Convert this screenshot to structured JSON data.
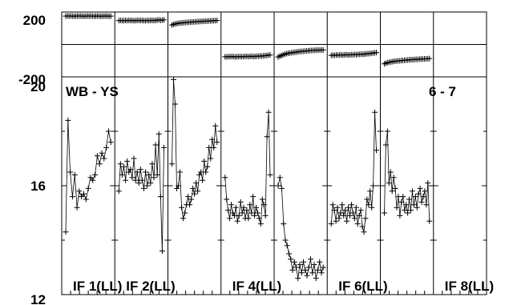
{
  "chart_data": {
    "type": "line",
    "layout": "vertically stacked panels, 8 sub-columns sharing the x axis",
    "grid": true,
    "color": "#000000",
    "marker": "plus",
    "panels": [
      {
        "id": "phase",
        "y_ticks": [
          "200",
          "-200"
        ],
        "ylim": [
          -200,
          200
        ],
        "reference_line": 0
      },
      {
        "id": "amplitude",
        "y_ticks": [
          "20",
          "16",
          "12"
        ],
        "ylim": [
          12,
          20
        ],
        "annotations": [
          "WB - YS",
          "6 - 7"
        ]
      }
    ],
    "columns": [
      {
        "label": "IF 1(LL)",
        "phase": [
          175,
          176,
          175,
          176,
          175,
          174,
          175,
          176,
          175,
          176,
          175,
          174,
          175,
          176,
          175,
          176,
          175,
          174,
          175,
          176,
          175,
          174,
          175,
          175,
          176,
          175,
          174,
          175
        ],
        "amp": [
          14.3,
          18.4,
          16.5,
          15.6,
          16.4,
          15.2,
          15.8,
          15.6,
          15.7,
          15.5,
          15.9,
          16.3,
          16.2,
          16.4,
          17.1,
          16.8,
          17.2,
          17.0,
          17.4,
          18.0,
          17.6
        ]
      },
      {
        "label": "IF 2(LL)",
        "phase": [
          147,
          148,
          147,
          146,
          148,
          147,
          149,
          147,
          148,
          146,
          147,
          148,
          149,
          147,
          148,
          147,
          146,
          148,
          147,
          148,
          149,
          147,
          148,
          150,
          151,
          149,
          150,
          152
        ],
        "amp": [
          15.8,
          16.8,
          16.4,
          16.7,
          16.2,
          16.9,
          16.5,
          16.6,
          16.3,
          17.0,
          16.2,
          16.5,
          16.1,
          16.6,
          16.2,
          15.9,
          16.5,
          16.0,
          16.4,
          16.1,
          16.8,
          16.3,
          17.5,
          16.4,
          17.9,
          15.6,
          13.6,
          17.4
        ]
      },
      {
        "label": "",
        "phase": [
          120,
          124,
          127,
          129,
          131,
          132,
          133,
          134,
          135,
          136,
          137,
          137,
          138,
          139,
          140,
          140,
          141,
          142,
          142,
          143,
          144,
          144,
          145,
          145,
          146,
          146,
          147,
          148
        ],
        "amp": [
          16.8,
          19.9,
          19.0,
          15.9,
          16.0,
          16.5,
          15.2,
          14.8,
          15.0,
          15.3,
          15.6,
          15.3,
          15.5,
          15.9,
          15.7,
          16.1,
          15.8,
          16.4,
          16.5,
          16.2,
          16.9,
          16.5,
          16.7,
          17.4,
          17.0,
          17.7,
          17.4,
          18.2,
          17.6
        ]
      },
      {
        "label": "IF 4(LL)",
        "phase": [
          -76,
          -77,
          -75,
          -76,
          -74,
          -75,
          -77,
          -76,
          -75,
          -74,
          -76,
          -75,
          -74,
          -73,
          -75,
          -74,
          -73,
          -75,
          -74,
          -72,
          -73,
          -71,
          -72,
          -70,
          -69,
          -68,
          -66,
          -65
        ],
        "amp": [
          16.3,
          15.5,
          15.1,
          14.8,
          15.3,
          15.0,
          14.9,
          15.2,
          14.7,
          14.9,
          15.4,
          15.0,
          15.2,
          14.8,
          15.1,
          14.8,
          15.3,
          15.0,
          15.6,
          14.9,
          15.2,
          15.0,
          14.8,
          14.6,
          15.5,
          15.3,
          14.9,
          17.8,
          18.7,
          16.4
        ]
      },
      {
        "label": "",
        "phase": [
          -78,
          -72,
          -68,
          -64,
          -60,
          -57,
          -55,
          -53,
          -51,
          -50,
          -48,
          -47,
          -45,
          -44,
          -43,
          -42,
          -41,
          -40,
          -39,
          -38,
          -37,
          -37,
          -36,
          -36,
          -35,
          -35,
          -34,
          -34
        ],
        "amp": [
          16.0,
          16.3,
          15.9,
          14.6,
          14.0,
          13.8,
          13.5,
          13.3,
          12.9,
          13.2,
          13.0,
          12.6,
          13.1,
          12.8,
          13.2,
          12.9,
          12.7,
          13.0,
          13.3,
          12.8,
          13.1,
          12.6,
          12.9,
          13.2,
          12.8,
          13.0
        ]
      },
      {
        "label": "IF 6(LL)",
        "phase": [
          -68,
          -66,
          -67,
          -65,
          -66,
          -64,
          -65,
          -66,
          -64,
          -63,
          -65,
          -64,
          -63,
          -64,
          -62,
          -63,
          -61,
          -62,
          -60,
          -61,
          -59,
          -58,
          -57,
          -56,
          -55,
          -53,
          -52,
          -50
        ],
        "amp": [
          14.6,
          15.3,
          15.1,
          14.7,
          15.2,
          14.8,
          15.0,
          15.3,
          14.9,
          15.1,
          14.7,
          15.2,
          14.9,
          15.3,
          15.0,
          14.8,
          15.2,
          14.6,
          14.9,
          15.1,
          14.5,
          14.3,
          14.8,
          15.5,
          15.3,
          15.8,
          15.2,
          16.0,
          18.7,
          17.3
        ]
      },
      {
        "label": "",
        "phase": [
          -120,
          -116,
          -112,
          -110,
          -108,
          -106,
          -104,
          -103,
          -102,
          -101,
          -100,
          -99,
          -98,
          -97,
          -96,
          -95,
          -94,
          -94,
          -93,
          -92,
          -92,
          -91,
          -90,
          -90,
          -89,
          -89,
          -88,
          -87
        ],
        "amp": [
          15.0,
          17.5,
          18.0,
          16.1,
          16.5,
          15.8,
          16.3,
          15.9,
          15.2,
          15.6,
          14.9,
          15.4,
          15.6,
          15.1,
          15.3,
          15.0,
          15.5,
          15.1,
          15.8,
          15.3,
          15.6,
          15.2,
          15.7,
          15.9,
          15.4,
          15.6,
          15.8,
          15.3,
          16.1,
          14.7
        ]
      },
      {
        "label": "IF 8(LL)",
        "phase": [],
        "amp": []
      }
    ]
  }
}
